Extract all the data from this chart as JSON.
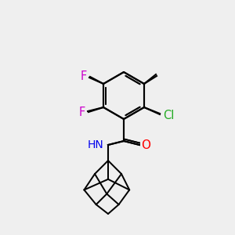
{
  "bg_color": "#efefef",
  "bond_color": "#000000",
  "bond_width": 1.5,
  "atom_colors": {
    "F": "#cc00cc",
    "Cl": "#22aa22",
    "O": "#ff0000",
    "N": "#0000ee",
    "H": "#000000",
    "C": "#000000"
  },
  "font_size": 9,
  "label_font_size": 9
}
